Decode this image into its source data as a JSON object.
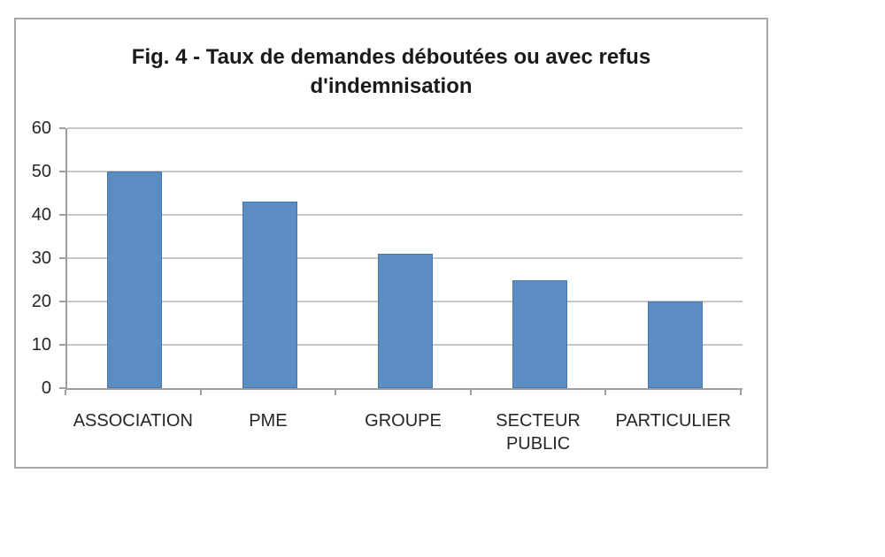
{
  "chart_data": {
    "type": "bar",
    "title": "Fig. 4 - Taux de demandes déboutées ou avec refus d'indemnisation",
    "title_lines": [
      "Fig. 4 - Taux de demandes déboutées ou avec refus",
      "d'indemnisation"
    ],
    "categories": [
      "ASSOCIATION",
      "PME",
      "GROUPE",
      "SECTEUR PUBLIC",
      "PARTICULIER"
    ],
    "values": [
      50,
      43,
      31,
      25,
      20
    ],
    "xlabel": "",
    "ylabel": "",
    "ylim": [
      0,
      60
    ],
    "yticks": [
      0,
      10,
      20,
      30,
      40,
      50,
      60
    ],
    "grid": true,
    "legend": "none",
    "colors": {
      "bar_fill": "#5b8cc2",
      "bar_border": "#4377ad",
      "gridline": "#c8c8c8",
      "axis": "#9e9e9e",
      "frame_border": "#a8a8a8",
      "title_text": "#1a1a1a",
      "label_text": "#262626"
    }
  }
}
